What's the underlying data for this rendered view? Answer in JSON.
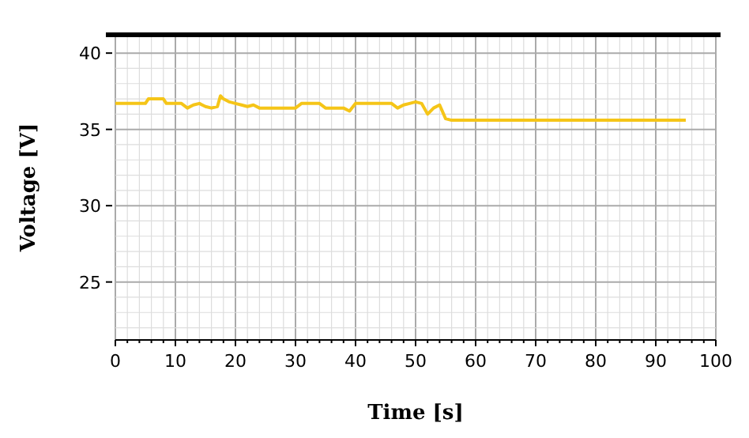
{
  "chart_data": {
    "type": "line",
    "xlabel": "Time [s]",
    "ylabel": "Voltage [V]",
    "xlim": [
      0,
      100
    ],
    "ylim": [
      21.2,
      41.2
    ],
    "xticks": [
      0,
      {
        "value": 2,
        "label": null
      },
      {
        "value": 4,
        "label": null
      },
      {
        "value": 6,
        "label": null
      },
      {
        "value": 8,
        "label": null
      },
      10,
      {
        "value": 12,
        "label": null
      },
      {
        "value": 14,
        "label": null
      },
      {
        "value": 16,
        "label": null
      },
      {
        "value": 18,
        "label": null
      },
      20,
      {
        "value": 22,
        "label": null
      },
      {
        "value": 24,
        "label": null
      },
      {
        "value": 26,
        "label": null
      },
      {
        "value": 28,
        "label": null
      },
      30,
      {
        "value": 32,
        "label": null
      },
      {
        "value": 34,
        "label": null
      },
      {
        "value": 36,
        "label": null
      },
      {
        "value": 38,
        "label": null
      },
      40,
      {
        "value": 42,
        "label": null
      },
      {
        "value": 44,
        "label": null
      },
      {
        "value": 46,
        "label": null
      },
      {
        "value": 48,
        "label": null
      },
      50,
      {
        "value": 52,
        "label": null
      },
      {
        "value": 54,
        "label": null
      },
      {
        "value": 56,
        "label": null
      },
      {
        "value": 58,
        "label": null
      },
      60,
      {
        "value": 62,
        "label": null
      },
      {
        "value": 64,
        "label": null
      },
      {
        "value": 66,
        "label": null
      },
      {
        "value": 68,
        "label": null
      },
      70,
      {
        "value": 72,
        "label": null
      },
      {
        "value": 74,
        "label": null
      },
      {
        "value": 76,
        "label": null
      },
      {
        "value": 78,
        "label": null
      },
      80,
      {
        "value": 82,
        "label": null
      },
      {
        "value": 84,
        "label": null
      },
      {
        "value": 86,
        "label": null
      },
      {
        "value": 88,
        "label": null
      },
      90,
      {
        "value": 92,
        "label": null
      },
      {
        "value": 94,
        "label": null
      },
      {
        "value": 96,
        "label": null
      },
      {
        "value": 98,
        "label": null
      },
      100
    ],
    "yticks": [
      {
        "value": 22,
        "label": null
      },
      {
        "value": 23,
        "label": null
      },
      {
        "value": 24,
        "label": null
      },
      25,
      {
        "value": 26,
        "label": null
      },
      {
        "value": 27,
        "label": null
      },
      {
        "value": 28,
        "label": null
      },
      {
        "value": 29,
        "label": null
      },
      30,
      {
        "value": 31,
        "label": null
      },
      {
        "value": 32,
        "label": null
      },
      {
        "value": 33,
        "label": null
      },
      {
        "value": 34,
        "label": null
      },
      35,
      {
        "value": 36,
        "label": null
      },
      {
        "value": 37,
        "label": null
      },
      {
        "value": 38,
        "label": null
      },
      {
        "value": 39,
        "label": null
      },
      40
    ],
    "grid": true,
    "line_style": "solid",
    "x": [
      0,
      5,
      5.5,
      8,
      8.5,
      11,
      12,
      13,
      14,
      15,
      16,
      17,
      17.5,
      18,
      19,
      20,
      21,
      22,
      23,
      24,
      30,
      31,
      34,
      35,
      38,
      39,
      40,
      46,
      47,
      48,
      49,
      50,
      51,
      52,
      53,
      54,
      55,
      56,
      60,
      70,
      80,
      90,
      95
    ],
    "series": [
      {
        "color": "#f5c518",
        "values": [
          36.7,
          36.7,
          37.0,
          37.0,
          36.7,
          36.7,
          36.4,
          36.6,
          36.7,
          36.5,
          36.4,
          36.5,
          37.2,
          37.0,
          36.8,
          36.7,
          36.6,
          36.5,
          36.6,
          36.4,
          36.4,
          36.7,
          36.7,
          36.4,
          36.4,
          36.2,
          36.7,
          36.7,
          36.4,
          36.6,
          36.7,
          36.8,
          36.7,
          36.0,
          36.4,
          36.6,
          35.7,
          35.6,
          35.6,
          35.6,
          35.6,
          35.6,
          35.6
        ]
      }
    ]
  }
}
